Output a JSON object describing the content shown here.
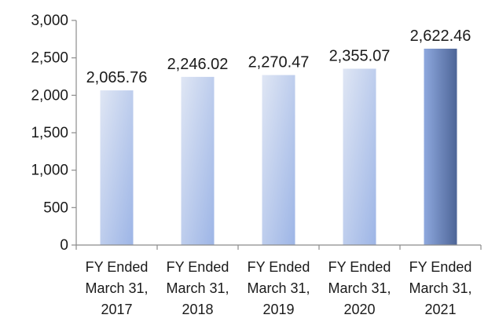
{
  "chart_data": {
    "type": "bar",
    "categories": [
      [
        "FY Ended",
        "March 31,",
        "2017"
      ],
      [
        "FY Ended",
        "March 31,",
        "2018"
      ],
      [
        "FY Ended",
        "March 31,",
        "2019"
      ],
      [
        "FY Ended",
        "March 31,",
        "2020"
      ],
      [
        "FY Ended",
        "March 31,",
        "2021"
      ]
    ],
    "values": [
      2065.76,
      2246.02,
      2270.47,
      2355.07,
      2622.46
    ],
    "value_labels": [
      "2,065.76",
      "2,246.02",
      "2,270.47",
      "2,355.07",
      "2,622.46"
    ],
    "ylim": [
      0,
      3000
    ],
    "yticks": [
      0,
      500,
      1000,
      1500,
      2000,
      2500,
      3000
    ],
    "ytick_labels": [
      "0",
      "500",
      "1,000",
      "1,500",
      "2,000",
      "2,500",
      "3,000"
    ],
    "grid": false,
    "legend": "none",
    "colors": {
      "bar_light_top": "#dfe6f4",
      "bar_light_bottom": "#9db5e6",
      "bar_highlight_left": "#8ea8de",
      "bar_highlight_right": "#4d6597",
      "axis": "#8c8c8c"
    },
    "highlight_index": 4
  }
}
